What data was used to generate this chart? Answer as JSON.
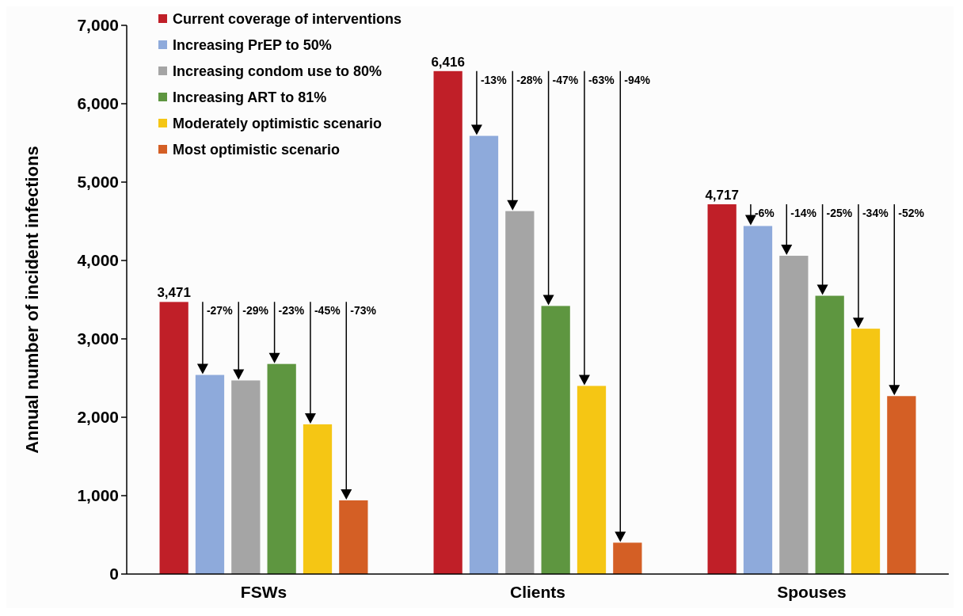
{
  "chart_data": {
    "type": "bar",
    "ylabel": "Annual number of incident infections",
    "categories": [
      "FSWs",
      "Clients",
      "Spouses"
    ],
    "series": [
      {
        "name": "Current coverage of interventions",
        "color": "#c01f28",
        "values": [
          3471,
          6416,
          4717
        ],
        "value_labels": [
          "3,471",
          "6,416",
          "4,717"
        ]
      },
      {
        "name": "Increasing PrEP to 50%",
        "color": "#8eaadb",
        "values": [
          2540,
          5590,
          4440
        ]
      },
      {
        "name": "Increasing condom use to 80%",
        "color": "#a5a5a5",
        "values": [
          2470,
          4630,
          4060
        ]
      },
      {
        "name": "Increasing ART to 81%",
        "color": "#5e9640",
        "values": [
          2680,
          3420,
          3550
        ]
      },
      {
        "name": "Moderately optimistic scenario",
        "color": "#f5c614",
        "values": [
          1910,
          2400,
          3130
        ]
      },
      {
        "name": "Most optimistic scenario",
        "color": "#d45f25",
        "values": [
          940,
          400,
          2270
        ]
      }
    ],
    "ylim": [
      0,
      7000
    ],
    "yticks": [
      0,
      {
        "value": 1000,
        "label": "1,000"
      },
      {
        "value": 2000,
        "label": "2,000"
      },
      {
        "value": 3000,
        "label": "3,000"
      },
      {
        "value": 4000,
        "label": "4,000"
      },
      {
        "value": 5000,
        "label": "5,000"
      },
      {
        "value": 6000,
        "label": "6,000"
      },
      {
        "value": 7000,
        "label": "7,000"
      }
    ],
    "grid": false,
    "legend": "top left",
    "annotations": [
      "-27%",
      "-29%",
      "-23%",
      "-45%",
      "-73%",
      "-13%",
      "-28%",
      "-47%",
      "-63%",
      "-94%",
      "-6%",
      "-14%",
      "-25%",
      "-34%",
      "-52%"
    ]
  }
}
